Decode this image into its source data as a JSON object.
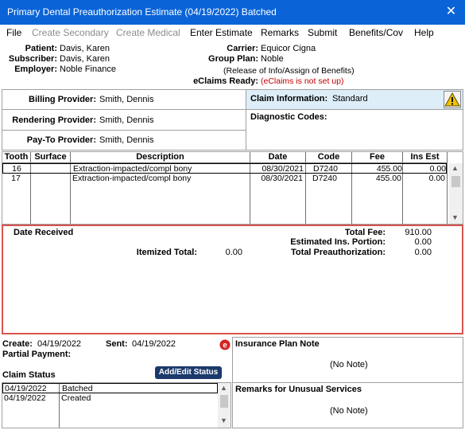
{
  "window": {
    "title": "Primary Dental Preauthorization Estimate (04/19/2022) Batched",
    "close_glyph": "✕"
  },
  "menu": [
    "File",
    "Create Secondary",
    "Create Medical",
    "Enter Estimate",
    "Remarks",
    "Submit",
    "Benefits/Cov",
    "Help"
  ],
  "header": {
    "patient_label": "Patient:",
    "patient": "Davis, Karen",
    "subscriber_label": "Subscriber:",
    "subscriber": "Davis, Karen",
    "employer_label": "Employer:",
    "employer": "Noble Finance",
    "carrier_label": "Carrier:",
    "carrier": "Equicor Cigna",
    "group_plan_label": "Group Plan:",
    "group_plan": "Noble",
    "release_note": "(Release of Info/Assign of Benefits)",
    "eclaims_label": "eClaims Ready:",
    "eclaims_value": "(eClaims is not set up)"
  },
  "providers": {
    "billing_label": "Billing Provider:",
    "billing": "Smith, Dennis",
    "rendering_label": "Rendering Provider:",
    "rendering": "Smith, Dennis",
    "payto_label": "Pay-To Provider:",
    "payto": "Smith, Dennis"
  },
  "claim_info": {
    "label": "Claim Information:",
    "value": "Standard",
    "diag_label": "Diagnostic Codes:"
  },
  "grid": {
    "headers": [
      "Tooth",
      "Surface",
      "Description",
      "Date",
      "Code",
      "Fee",
      "Ins Est"
    ],
    "rows": [
      [
        "16",
        "",
        "Extraction-impacted/compl bony",
        "08/30/2021",
        "D7240",
        "455.00",
        "0.00"
      ],
      [
        "17",
        "",
        "Extraction-impacted/compl bony",
        "08/30/2021",
        "D7240",
        "455.00",
        "0.00"
      ]
    ]
  },
  "totals": {
    "date_received_label": "Date Received",
    "total_fee_label": "Total Fee:",
    "total_fee": "910.00",
    "est_ins_label": "Estimated Ins. Portion:",
    "est_ins": "0.00",
    "itemized_label": "Itemized Total:",
    "itemized": "0.00",
    "total_preauth_label": "Total Preauthorization:",
    "total_preauth": "0.00"
  },
  "status": {
    "create_label": "Create:",
    "create": "04/19/2022",
    "sent_label": "Sent:",
    "sent": "04/19/2022",
    "partial_label": "Partial Payment:",
    "claim_status_label": "Claim Status",
    "add_edit_button": "Add/Edit Status",
    "rows": [
      [
        "04/19/2022",
        "Batched"
      ],
      [
        "04/19/2022",
        "Created"
      ]
    ]
  },
  "notes": {
    "insurance_plan_label": "Insurance Plan Note",
    "insurance_plan_value": "(No Note)",
    "remarks_label": "Remarks for Unusual Services",
    "remarks_value": "(No Note)"
  },
  "colors": {
    "titlebar": "#0a64d8",
    "highlight_border": "#d9534f",
    "claim_info_bg": "#ddeef9"
  }
}
